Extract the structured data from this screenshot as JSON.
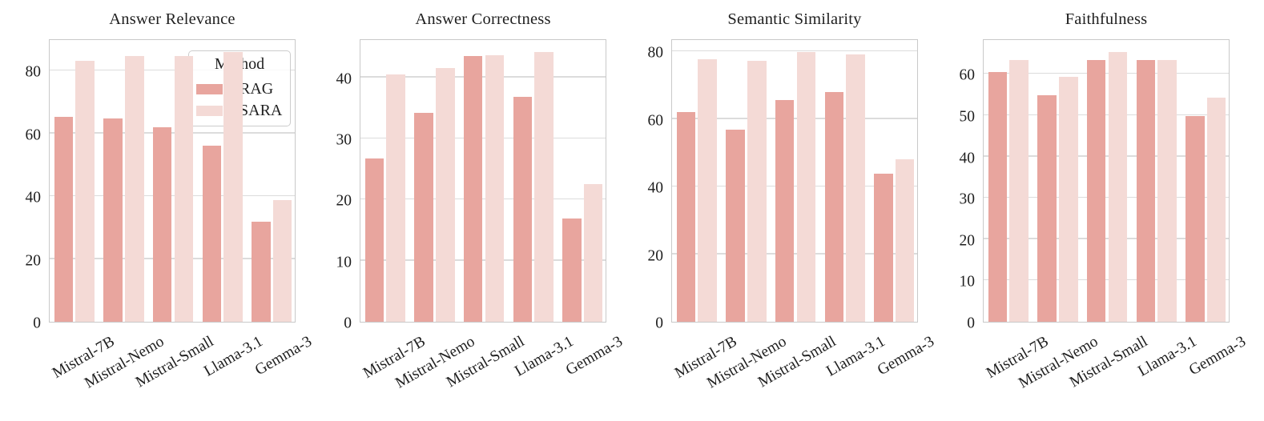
{
  "figure": {
    "background": "#ffffff",
    "text_color": "#1f1f1f",
    "grid_color": "#dcdcdc",
    "axis_border_color": "#c9c9c9",
    "font_style": "serif",
    "xtick_rotation": 30
  },
  "legend": {
    "title": "Method",
    "location": "upper right of first panel",
    "entries": [
      {
        "label": "RAG",
        "color": "#e8a59e"
      },
      {
        "label": "SARA",
        "color": "#f4dad6"
      }
    ]
  },
  "chart_data": [
    {
      "type": "bar",
      "title": "Answer Relevance",
      "categories": [
        "Mistral-7B",
        "Mistral-Nemo",
        "Mistral-Small",
        "Llama-3.1",
        "Gemma-3"
      ],
      "series": [
        {
          "name": "RAG",
          "color": "#e8a59e",
          "values": [
            65.3,
            64.9,
            62.0,
            56.2,
            31.9
          ]
        },
        {
          "name": "SARA",
          "color": "#f4dad6",
          "values": [
            83.2,
            84.6,
            84.8,
            86.0,
            38.8
          ]
        }
      ],
      "xlabel": "",
      "ylabel": "",
      "ylim": [
        0,
        90.3
      ],
      "yticks": [
        0,
        20,
        40,
        60,
        80
      ],
      "grid": "horizontal",
      "legend_visible": true
    },
    {
      "type": "bar",
      "title": "Answer Correctness",
      "categories": [
        "Mistral-7B",
        "Mistral-Nemo",
        "Mistral-Small",
        "Llama-3.1",
        "Gemma-3"
      ],
      "series": [
        {
          "name": "RAG",
          "color": "#e8a59e",
          "values": [
            26.8,
            34.2,
            43.5,
            36.9,
            16.9
          ]
        },
        {
          "name": "SARA",
          "color": "#f4dad6",
          "values": [
            40.5,
            41.5,
            43.7,
            44.2,
            22.6
          ]
        }
      ],
      "xlabel": "",
      "ylabel": "",
      "ylim": [
        0,
        46.4
      ],
      "yticks": [
        0,
        10,
        20,
        30,
        40
      ],
      "grid": "horizontal",
      "legend_visible": false
    },
    {
      "type": "bar",
      "title": "Semantic Similarity",
      "categories": [
        "Mistral-7B",
        "Mistral-Nemo",
        "Mistral-Small",
        "Llama-3.1",
        "Gemma-3"
      ],
      "series": [
        {
          "name": "RAG",
          "color": "#e8a59e",
          "values": [
            62.1,
            56.9,
            65.5,
            68.0,
            43.7
          ]
        },
        {
          "name": "SARA",
          "color": "#f4dad6",
          "values": [
            77.6,
            77.2,
            79.8,
            79.1,
            48.0
          ]
        }
      ],
      "xlabel": "",
      "ylabel": "",
      "ylim": [
        0,
        83.8
      ],
      "yticks": [
        0,
        20,
        40,
        60,
        80
      ],
      "grid": "horizontal",
      "legend_visible": false
    },
    {
      "type": "bar",
      "title": "Faithfulness",
      "categories": [
        "Mistral-7B",
        "Mistral-Nemo",
        "Mistral-Small",
        "Llama-3.1",
        "Gemma-3"
      ],
      "series": [
        {
          "name": "RAG",
          "color": "#e8a59e",
          "values": [
            60.4,
            54.9,
            63.4,
            63.4,
            49.8
          ]
        },
        {
          "name": "SARA",
          "color": "#f4dad6",
          "values": [
            63.4,
            59.3,
            65.3,
            63.4,
            54.2
          ]
        }
      ],
      "xlabel": "",
      "ylabel": "",
      "ylim": [
        0,
        68.6
      ],
      "yticks": [
        0,
        10,
        20,
        30,
        40,
        50,
        60
      ],
      "grid": "horizontal",
      "legend_visible": false
    }
  ]
}
